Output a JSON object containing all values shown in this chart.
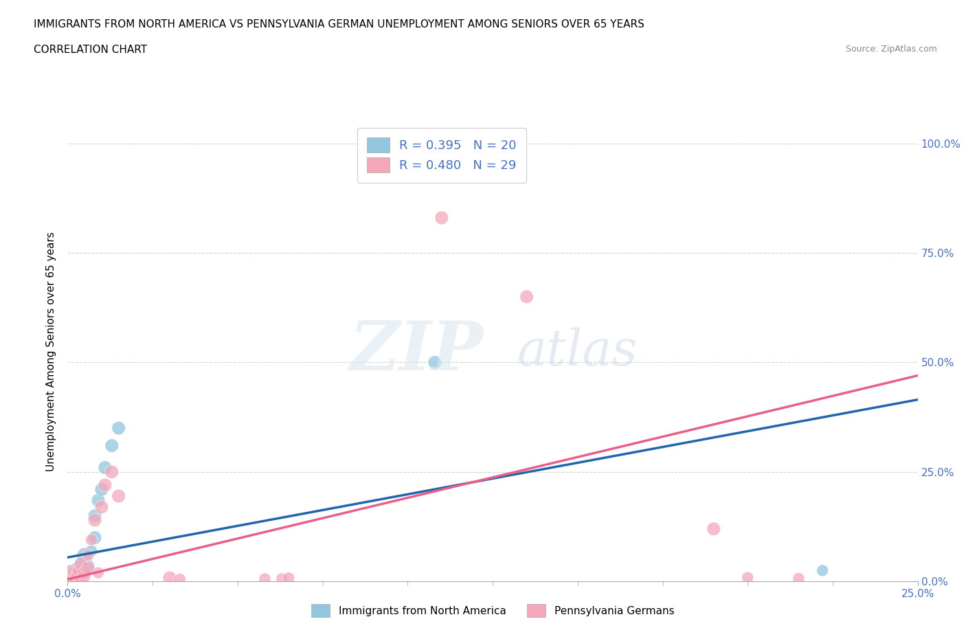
{
  "title_line1": "IMMIGRANTS FROM NORTH AMERICA VS PENNSYLVANIA GERMAN UNEMPLOYMENT AMONG SENIORS OVER 65 YEARS",
  "title_line2": "CORRELATION CHART",
  "source_text": "Source: ZipAtlas.com",
  "ylabel": "Unemployment Among Seniors over 65 years",
  "xlim": [
    0.0,
    0.25
  ],
  "ylim": [
    0.0,
    1.05
  ],
  "ytick_vals": [
    0.0,
    0.25,
    0.5,
    0.75,
    1.0
  ],
  "blue_color": "#92c5de",
  "pink_color": "#f4a7b9",
  "blue_line_color": "#2166ac",
  "pink_line_color": "#e8608a",
  "background_color": "#ffffff",
  "grid_color": "#d0d0d0",
  "blue_scatter_x": [
    0.001,
    0.002,
    0.002,
    0.003,
    0.003,
    0.004,
    0.004,
    0.005,
    0.005,
    0.006,
    0.007,
    0.008,
    0.008,
    0.009,
    0.01,
    0.011,
    0.013,
    0.015,
    0.108,
    0.222
  ],
  "blue_scatter_y": [
    0.02,
    0.015,
    0.025,
    0.018,
    0.03,
    0.022,
    0.04,
    0.028,
    0.06,
    0.035,
    0.07,
    0.1,
    0.15,
    0.185,
    0.21,
    0.26,
    0.31,
    0.35,
    0.5,
    0.025
  ],
  "blue_scatter_size": [
    300,
    150,
    200,
    150,
    200,
    150,
    200,
    200,
    250,
    200,
    150,
    200,
    200,
    200,
    200,
    200,
    200,
    200,
    200,
    150
  ],
  "pink_scatter_x": [
    0.001,
    0.001,
    0.002,
    0.002,
    0.003,
    0.003,
    0.004,
    0.004,
    0.005,
    0.005,
    0.006,
    0.006,
    0.007,
    0.008,
    0.009,
    0.01,
    0.011,
    0.013,
    0.015,
    0.03,
    0.033,
    0.058,
    0.063,
    0.065,
    0.11,
    0.135,
    0.19,
    0.2,
    0.215
  ],
  "pink_scatter_y": [
    0.018,
    0.01,
    0.02,
    0.008,
    0.015,
    0.025,
    0.005,
    0.04,
    0.01,
    0.02,
    0.03,
    0.06,
    0.095,
    0.14,
    0.02,
    0.17,
    0.22,
    0.25,
    0.195,
    0.008,
    0.005,
    0.006,
    0.006,
    0.008,
    0.83,
    0.65,
    0.12,
    0.009,
    0.007
  ],
  "pink_scatter_size": [
    300,
    200,
    200,
    150,
    200,
    150,
    200,
    200,
    150,
    200,
    200,
    150,
    150,
    200,
    150,
    200,
    200,
    200,
    200,
    200,
    150,
    150,
    150,
    150,
    200,
    200,
    200,
    150,
    150
  ],
  "blue_trend_x": [
    0.0,
    0.25
  ],
  "blue_trend_y": [
    0.055,
    0.415
  ],
  "pink_trend_x": [
    0.0,
    0.25
  ],
  "pink_trend_y": [
    0.005,
    0.47
  ],
  "title_fontsize": 11,
  "subtitle_fontsize": 11,
  "legend_fontsize": 13,
  "axis_label_fontsize": 11,
  "axis_tick_color": "#4472c4"
}
